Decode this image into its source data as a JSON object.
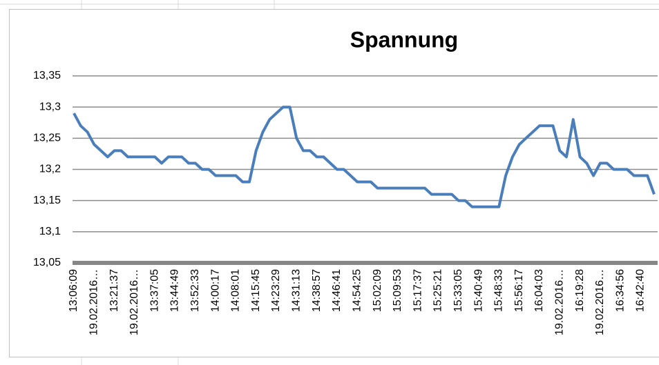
{
  "chart_data": {
    "type": "line",
    "title": "Spannung",
    "categories": [
      "13:06:09",
      null,
      null,
      "19.02.2016…",
      null,
      null,
      "13:21:37",
      null,
      null,
      "19.02.2016…",
      null,
      null,
      "13:37:05",
      null,
      null,
      "13:44:49",
      null,
      null,
      "13:52:33",
      null,
      null,
      "14:00:17",
      null,
      null,
      "14:08:01",
      null,
      null,
      "14:15:45",
      null,
      null,
      "14:23:29",
      null,
      null,
      "14:31:13",
      null,
      null,
      "14:38:57",
      null,
      null,
      "14:46:41",
      null,
      null,
      "14:54:25",
      null,
      null,
      "15:02:09",
      null,
      null,
      "15:09:53",
      null,
      null,
      "15:17:37",
      null,
      null,
      "15:25:21",
      null,
      null,
      "15:33:05",
      null,
      null,
      "15:40:49",
      null,
      null,
      "15:48:33",
      null,
      null,
      "15:56:17",
      null,
      null,
      "16:04:03",
      null,
      null,
      "19.02.2016…",
      null,
      null,
      "16:19:28",
      null,
      null,
      "19.02.2016…",
      null,
      null,
      "16:34:56",
      null,
      null,
      "16:42:40",
      null,
      null
    ],
    "values": [
      13.29,
      13.27,
      13.26,
      13.24,
      13.23,
      13.22,
      13.23,
      13.23,
      13.22,
      13.22,
      13.22,
      13.22,
      13.22,
      13.21,
      13.22,
      13.22,
      13.22,
      13.21,
      13.21,
      13.2,
      13.2,
      13.19,
      13.19,
      13.19,
      13.19,
      13.18,
      13.18,
      13.23,
      13.26,
      13.28,
      13.29,
      13.3,
      13.3,
      13.25,
      13.23,
      13.23,
      13.22,
      13.22,
      13.21,
      13.2,
      13.2,
      13.19,
      13.18,
      13.18,
      13.18,
      13.17,
      13.17,
      13.17,
      13.17,
      13.17,
      13.17,
      13.17,
      13.17,
      13.16,
      13.16,
      13.16,
      13.16,
      13.15,
      13.15,
      13.14,
      13.14,
      13.14,
      13.14,
      13.14,
      13.19,
      13.22,
      13.24,
      13.25,
      13.26,
      13.27,
      13.27,
      13.27,
      13.23,
      13.22,
      13.28,
      13.22,
      13.21,
      13.19,
      13.21,
      13.21,
      13.2,
      13.2,
      13.2,
      13.19,
      13.19,
      13.19,
      13.16
    ],
    "color": "#4a7ebb",
    "ylim": [
      13.05,
      13.35
    ],
    "yticks": [
      {
        "value": 13.05,
        "label": "13,05"
      },
      {
        "value": 13.1,
        "label": "13,1"
      },
      {
        "value": 13.15,
        "label": "13,15"
      },
      {
        "value": 13.2,
        "label": "13,2"
      },
      {
        "value": 13.25,
        "label": "13,25"
      },
      {
        "value": 13.3,
        "label": "13,3"
      },
      {
        "value": 13.35,
        "label": "13,35"
      }
    ],
    "grid": true
  }
}
